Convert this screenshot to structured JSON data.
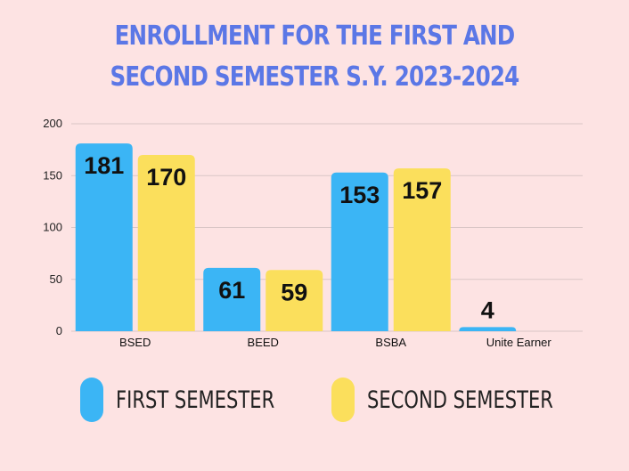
{
  "chart_data": {
    "type": "bar",
    "title_lines": [
      "ENROLLMENT FOR THE FIRST AND",
      "SECOND SEMESTER S.Y. 2023-2024"
    ],
    "categories": [
      "BSED",
      "BEED",
      "BSBA",
      "Unite Earner"
    ],
    "series": [
      {
        "name": "FIRST SEMESTER",
        "color": "#3bb5f5",
        "values": [
          181,
          61,
          153,
          4
        ]
      },
      {
        "name": "SECOND SEMESTER",
        "color": "#fbdf5c",
        "values": [
          170,
          59,
          157,
          null
        ]
      }
    ],
    "ylim": [
      0,
      200
    ],
    "yticks": [
      0,
      50,
      100,
      150,
      200
    ],
    "grid": true,
    "legend_position": "bottom"
  }
}
